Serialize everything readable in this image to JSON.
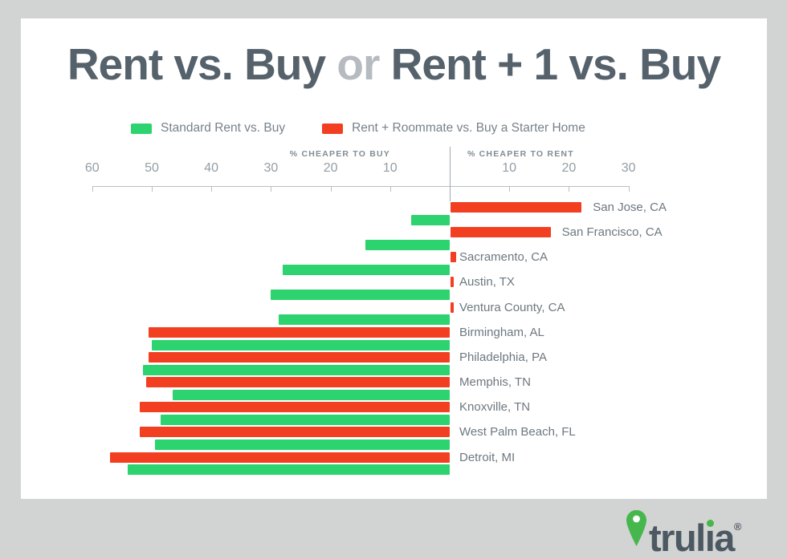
{
  "title": {
    "part1": "Rent vs. Buy ",
    "part2": "or",
    "part3": " Rent + 1 vs. Buy"
  },
  "legend": [
    {
      "label": "Standard Rent vs. Buy",
      "color": "#2cd36f"
    },
    {
      "label": "Rent + Roommate vs. Buy a Starter Home",
      "color": "#f23f22"
    }
  ],
  "axis": {
    "left_header": "% CHEAPER TO BUY",
    "right_header": "% CHEAPER TO RENT",
    "left_ticks": [
      60,
      50,
      40,
      30,
      20,
      10
    ],
    "right_ticks": [
      10,
      20,
      30
    ]
  },
  "chart_data": {
    "type": "bar",
    "orientation": "horizontal-diverging",
    "title": "Rent vs. Buy or Rent + 1 vs. Buy",
    "unit": "percent",
    "value_convention": "negative = % cheaper to buy (bar extends left), positive = % cheaper to rent (bar extends right)",
    "xlim": [
      -60,
      30
    ],
    "tick_interval": 10,
    "grid": false,
    "legend_position": "top",
    "categories": [
      "San Jose, CA",
      "San Francisco, CA",
      "Sacramento, CA",
      "Austin, TX",
      "Ventura County, CA",
      "Birmingham, AL",
      "Philadelphia, PA",
      "Memphis, TN",
      "Knoxville, TN",
      "West Palm Beach, FL",
      "Detroit, MI"
    ],
    "series": [
      {
        "name": "Rent + Roommate vs. Buy a Starter Home",
        "color": "#f23f22",
        "values": [
          22,
          16.8,
          1,
          0.5,
          0.5,
          -50.5,
          -50.5,
          -51,
          -52,
          -52,
          -57
        ]
      },
      {
        "name": "Standard Rent vs. Buy",
        "color": "#2cd36f",
        "values": [
          -6.5,
          -14.2,
          -28,
          -30,
          -28.7,
          -50,
          -51.5,
          -46.5,
          -48.5,
          -49.5,
          -54
        ]
      }
    ]
  },
  "branding": {
    "logo_text": "trulia",
    "logo_pre": "trul",
    "logo_i": "ı",
    "logo_post": "a",
    "registered": "®",
    "logo_text_color": "#4d5962",
    "logo_green": "#46b74c"
  },
  "colors": {
    "page_background": "#d2d3d3",
    "card_background": "#ffffff",
    "title_text": "#55616b",
    "title_or_text": "#b5bbc0",
    "axis_line": "#b8bfc4",
    "tick_text": "#939da4",
    "axis_header_text": "#828d94",
    "city_label_text": "#6d7880",
    "legend_text": "#77828a"
  }
}
